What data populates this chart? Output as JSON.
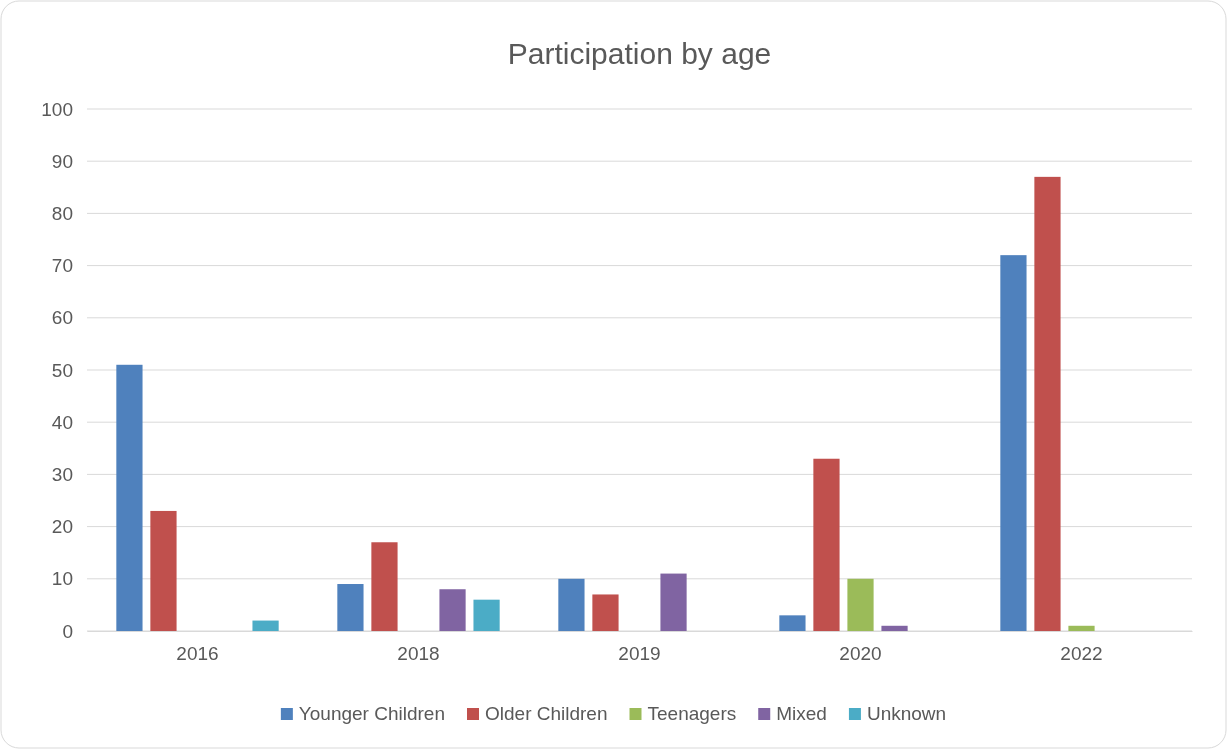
{
  "chart_data": {
    "type": "bar",
    "title": "Participation by age",
    "categories": [
      "2016",
      "2018",
      "2019",
      "2020",
      "2022"
    ],
    "series": [
      {
        "name": "Younger Children",
        "color": "#4f81bd",
        "values": [
          51,
          9,
          10,
          3,
          72
        ]
      },
      {
        "name": "Older Children",
        "color": "#c0504d",
        "values": [
          23,
          17,
          7,
          33,
          87
        ]
      },
      {
        "name": "Teenagers",
        "color": "#9bbb59",
        "values": [
          0,
          0,
          0,
          10,
          1
        ]
      },
      {
        "name": "Mixed",
        "color": "#8064a2",
        "values": [
          0,
          8,
          11,
          1,
          0
        ]
      },
      {
        "name": "Unknown",
        "color": "#4bacc6",
        "values": [
          2,
          6,
          0,
          0,
          0
        ]
      }
    ],
    "ylim": [
      0,
      100
    ],
    "yticks": [
      0,
      10,
      20,
      30,
      40,
      50,
      60,
      70,
      80,
      90,
      100
    ],
    "grid": "y",
    "legend": "bottom"
  }
}
